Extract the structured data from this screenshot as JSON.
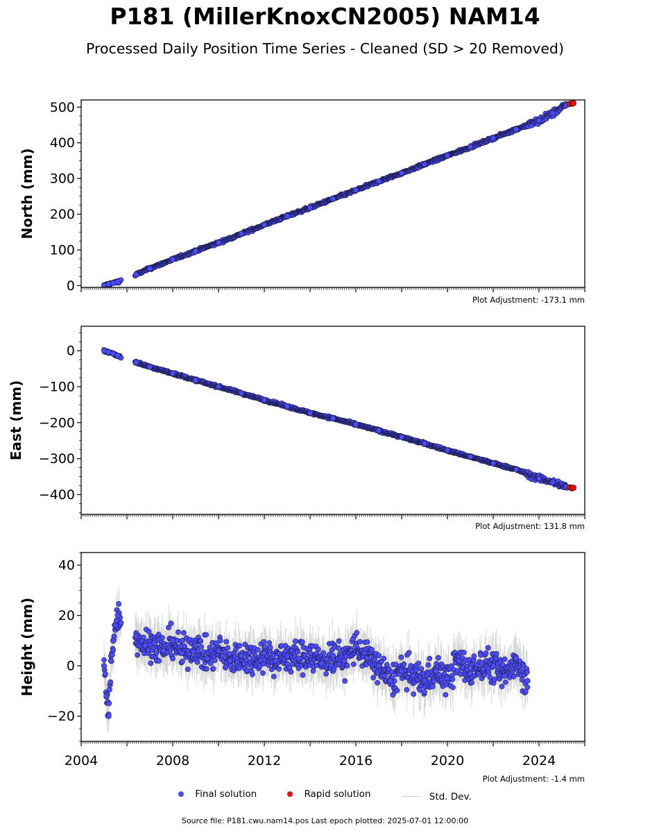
{
  "title": "P181 (MillerKnoxCN2005) NAM14",
  "subtitle": "Processed Daily Position Time Series - Cleaned (SD > 20 Removed)",
  "colors": {
    "final": "#4c4cff",
    "rapid": "#e01010",
    "std_dev": "#b4b4b4",
    "edge": "#1a1a40"
  },
  "legend": {
    "final_label": "Final solution",
    "rapid_label": "Rapid solution",
    "std_label": "Std. Dev."
  },
  "footer": "Source file: P181.cwu.nam14.pos  Last epoch plotted: 2025-07-01 12:00:00",
  "chart_data": [
    {
      "type": "scatter",
      "ylabel": "North (mm)",
      "adjustment": "Plot Adjustment: -173.1 mm",
      "xlim": [
        2004.0,
        2026.0
      ],
      "ylim": [
        -5,
        520
      ],
      "yticks": [
        0,
        100,
        200,
        300,
        400,
        500
      ],
      "ytick_labels": [
        "0",
        "100",
        "200",
        "300",
        "400",
        "500"
      ],
      "show_xtick_labels": false,
      "series": [
        {
          "name": "Final solution",
          "x": [
            2005.0,
            2005.2,
            2005.4,
            2005.6,
            2006.4,
            2007.0,
            2008.0,
            2009.0,
            2010.0,
            2011.0,
            2012.0,
            2013.0,
            2014.0,
            2015.0,
            2016.0,
            2017.0,
            2018.0,
            2019.0,
            2020.0,
            2021.0,
            2022.0,
            2023.0,
            2024.0,
            2024.6,
            2025.2
          ],
          "y": [
            0,
            4,
            7,
            11,
            31,
            48,
            73,
            97,
            120,
            145,
            170,
            195,
            218,
            243,
            267,
            292,
            315,
            340,
            364,
            388,
            413,
            438,
            462,
            483,
            505
          ]
        },
        {
          "name": "Rapid solution",
          "x": [
            2025.35,
            2025.45,
            2025.5
          ],
          "y": [
            509,
            510,
            511
          ]
        }
      ]
    },
    {
      "type": "scatter",
      "ylabel": "East (mm)",
      "adjustment": "Plot Adjustment: 131.8 mm",
      "xlim": [
        2004.0,
        2026.0
      ],
      "ylim": [
        -455,
        68
      ],
      "yticks": [
        -400,
        -300,
        -200,
        -100,
        0
      ],
      "ytick_labels": [
        "−400",
        "−300",
        "−200",
        "−100",
        "0"
      ],
      "show_xtick_labels": false,
      "series": [
        {
          "name": "Final solution",
          "x": [
            2005.0,
            2005.2,
            2005.4,
            2005.6,
            2006.4,
            2007.0,
            2008.0,
            2009.0,
            2010.0,
            2011.0,
            2012.0,
            2013.0,
            2014.0,
            2015.0,
            2016.0,
            2017.0,
            2018.0,
            2019.0,
            2020.0,
            2021.0,
            2022.0,
            2023.0,
            2024.0,
            2024.6,
            2025.2
          ],
          "y": [
            0,
            -4,
            -8,
            -14,
            -32,
            -45,
            -63,
            -82,
            -100,
            -118,
            -137,
            -155,
            -173,
            -188,
            -205,
            -222,
            -240,
            -258,
            -277,
            -295,
            -313,
            -330,
            -355,
            -365,
            -378
          ]
        },
        {
          "name": "Rapid solution",
          "x": [
            2025.35,
            2025.45,
            2025.5
          ],
          "y": [
            -380,
            -382,
            -381
          ]
        }
      ]
    },
    {
      "type": "scatter",
      "ylabel": "Height (mm)",
      "adjustment": "Plot Adjustment: -1.4 mm",
      "xlim": [
        2004.0,
        2026.0
      ],
      "ylim": [
        -30,
        45
      ],
      "yticks": [
        -20,
        0,
        20,
        40
      ],
      "ytick_labels": [
        "−20",
        "0",
        "20",
        "40"
      ],
      "xticks": [
        2004,
        2008,
        2012,
        2016,
        2020,
        2024
      ],
      "xtick_labels": [
        "2004",
        "2008",
        "2012",
        "2016",
        "2020",
        "2024"
      ],
      "show_xtick_labels": true,
      "series": [
        {
          "name": "Final solution",
          "x": [
            2005.0,
            2005.1,
            2005.2,
            2005.3,
            2005.4,
            2005.5,
            2005.6,
            2006.4,
            2006.8,
            2007.2,
            2007.6,
            2008.0,
            2008.4,
            2009.0,
            2009.5,
            2010.0,
            2010.5,
            2011.0,
            2011.5,
            2012.0,
            2012.5,
            2013.0,
            2013.5,
            2014.0,
            2014.5,
            2015.0,
            2015.5,
            2016.0,
            2016.5,
            2017.0,
            2017.5,
            2018.0,
            2018.5,
            2019.0,
            2019.5,
            2020.0,
            2020.5,
            2021.0,
            2021.5,
            2022.0,
            2022.5,
            2023.0,
            2023.5
          ],
          "y": [
            0,
            -12,
            -20,
            2,
            10,
            16,
            20,
            12,
            8,
            9,
            6,
            10,
            5,
            8,
            3,
            6,
            2,
            4,
            3,
            5,
            2,
            4,
            3,
            5,
            1,
            4,
            2,
            8,
            3,
            0,
            -6,
            -2,
            -4,
            -6,
            -2,
            -5,
            2,
            -3,
            1,
            0,
            -4,
            3,
            -6
          ]
        },
        {
          "name": "Rapid solution",
          "x": [],
          "y": []
        }
      ]
    }
  ]
}
